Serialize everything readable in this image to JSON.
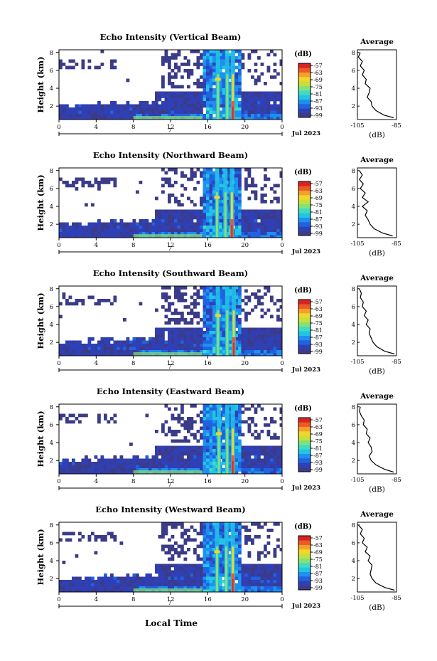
{
  "figure": {
    "xlabel": "Local Time",
    "date_label": "Jul 2023",
    "day_label": "7",
    "colorbar_unit": "(dB)",
    "colorbar_ticks": [
      "-57",
      "-63",
      "-69",
      "-75",
      "-81",
      "-87",
      "-93",
      "-99"
    ],
    "average_title": "Average",
    "average_xlabel": "(dB)",
    "average_xticks": [
      "-105",
      "-85"
    ],
    "average_yticks": [
      "2",
      "4",
      "6",
      "8"
    ],
    "ylabel": "Height (km)",
    "xticks": [
      "0",
      "4",
      "8",
      "12",
      "16",
      "20",
      "0"
    ],
    "yticks": [
      "2",
      "4",
      "6",
      "8"
    ]
  },
  "palette": [
    "#3b3b8a",
    "#2f3fb5",
    "#1f63e0",
    "#1e90f0",
    "#22c4e6",
    "#3fdcc0",
    "#86e07a",
    "#c6e03a",
    "#f1d62c",
    "#f5a02a",
    "#ee5a25",
    "#d92320"
  ],
  "chart_data": [
    {
      "type": "heatmap",
      "title": "Echo Intensity (Vertical Beam)",
      "xlabel": "Local Time",
      "ylabel": "Height (km)",
      "xlim": [
        0,
        24
      ],
      "ylim": [
        0.5,
        8.3
      ],
      "colorbar_range_db": [
        -99,
        -57
      ],
      "key_features": {
        "dense_core_hours": [
          15.5,
          19.5
        ],
        "bright_streaks_hours": [
          17.1,
          18.1,
          18.7
        ]
      },
      "average_profile": {
        "title": "Average",
        "xlabel": "(dB)",
        "xlim": [
          -105,
          -85
        ],
        "ylim": [
          0.5,
          8.3
        ],
        "height_km": [
          0.7,
          1.0,
          1.5,
          2.0,
          2.5,
          3.0,
          3.5,
          4.0,
          4.5,
          5.0,
          5.5,
          6.0,
          6.5,
          7.0,
          7.5,
          8.0
        ],
        "db": [
          -86.5,
          -91.5,
          -95.5,
          -97.5,
          -98.0,
          -100.0,
          -99.0,
          -98.5,
          -101.0,
          -100.5,
          -102.5,
          -101.5,
          -103.5,
          -102.5,
          -104.5,
          -103.5
        ]
      }
    },
    {
      "type": "heatmap",
      "title": "Echo Intensity (Northward Beam)",
      "xlabel": "Local Time",
      "ylabel": "Height (km)",
      "xlim": [
        0,
        24
      ],
      "ylim": [
        0.5,
        8.3
      ],
      "colorbar_range_db": [
        -99,
        -57
      ],
      "key_features": {
        "dense_core_hours": [
          15.5,
          19.5
        ],
        "bright_streaks_hours": [
          17.0,
          17.9,
          18.6
        ]
      },
      "average_profile": {
        "title": "Average",
        "xlabel": "(dB)",
        "xlim": [
          -105,
          -85
        ],
        "ylim": [
          0.5,
          8.3
        ],
        "height_km": [
          0.7,
          1.0,
          1.5,
          2.0,
          2.5,
          3.0,
          3.5,
          4.0,
          4.5,
          5.0,
          5.5,
          6.0,
          6.5,
          7.0,
          7.5,
          8.0
        ],
        "db": [
          -87.0,
          -92.0,
          -96.5,
          -98.5,
          -99.5,
          -101.0,
          -100.0,
          -102.5,
          -99.5,
          -102.5,
          -101.0,
          -103.5,
          -102.0,
          -104.0,
          -102.5,
          -104.0
        ]
      }
    },
    {
      "type": "heatmap",
      "title": "Echo Intensity (Southward Beam)",
      "xlabel": "Local Time",
      "ylabel": "Height (km)",
      "xlim": [
        0,
        24
      ],
      "ylim": [
        0.5,
        8.3
      ],
      "colorbar_range_db": [
        -99,
        -57
      ],
      "key_features": {
        "dense_core_hours": [
          15.5,
          19.5
        ],
        "bright_streaks_hours": [
          17.1,
          18.1,
          18.8
        ]
      },
      "average_profile": {
        "title": "Average",
        "xlabel": "(dB)",
        "xlim": [
          -105,
          -85
        ],
        "ylim": [
          0.5,
          8.3
        ],
        "height_km": [
          0.7,
          1.0,
          1.5,
          2.0,
          2.5,
          3.0,
          3.5,
          4.0,
          4.5,
          5.0,
          5.5,
          6.0,
          6.5,
          7.0,
          7.5,
          8.0
        ],
        "db": [
          -86.0,
          -91.0,
          -95.0,
          -97.0,
          -98.0,
          -99.0,
          -98.5,
          -100.5,
          -99.5,
          -101.5,
          -100.5,
          -102.5,
          -102.0,
          -103.5,
          -103.0,
          -104.0
        ]
      }
    },
    {
      "type": "heatmap",
      "title": "Echo Intensity (Eastward Beam)",
      "xlabel": "Local Time",
      "ylabel": "Height (km)",
      "xlim": [
        0,
        24
      ],
      "ylim": [
        0.5,
        8.3
      ],
      "colorbar_range_db": [
        -99,
        -57
      ],
      "key_features": {
        "dense_core_hours": [
          15.5,
          19.5
        ],
        "bright_streaks_hours": [
          17.2,
          18.1,
          18.7
        ]
      },
      "average_profile": {
        "title": "Average",
        "xlabel": "(dB)",
        "xlim": [
          -105,
          -85
        ],
        "ylim": [
          0.5,
          8.3
        ],
        "height_km": [
          0.7,
          1.0,
          1.5,
          2.0,
          2.5,
          3.0,
          3.5,
          4.0,
          4.5,
          5.0,
          5.5,
          6.0,
          6.5,
          7.0,
          7.5,
          8.0
        ],
        "db": [
          -86.5,
          -91.0,
          -95.5,
          -98.0,
          -99.0,
          -97.5,
          -98.0,
          -99.5,
          -98.5,
          -100.5,
          -100.0,
          -102.0,
          -101.5,
          -103.0,
          -104.0,
          -103.5
        ]
      }
    },
    {
      "type": "heatmap",
      "title": "Echo Intensity (Westward Beam)",
      "xlabel": "Local Time",
      "ylabel": "Height (km)",
      "xlim": [
        0,
        24
      ],
      "ylim": [
        0.5,
        8.3
      ],
      "colorbar_range_db": [
        -99,
        -57
      ],
      "key_features": {
        "dense_core_hours": [
          15.5,
          19.5
        ],
        "bright_streaks_hours": [
          17.0,
          18.0,
          18.7
        ]
      },
      "average_profile": {
        "title": "Average",
        "xlabel": "(dB)",
        "xlim": [
          -105,
          -85
        ],
        "ylim": [
          0.5,
          8.3
        ],
        "height_km": [
          0.7,
          1.0,
          1.5,
          2.0,
          2.5,
          3.0,
          3.5,
          4.0,
          4.5,
          5.0,
          5.5,
          6.0,
          6.5,
          7.0,
          7.5,
          8.0
        ],
        "db": [
          -86.0,
          -91.0,
          -95.5,
          -97.5,
          -98.5,
          -98.0,
          -97.5,
          -99.5,
          -98.5,
          -101.0,
          -100.0,
          -102.5,
          -101.5,
          -103.5,
          -102.5,
          -104.5
        ]
      }
    }
  ]
}
